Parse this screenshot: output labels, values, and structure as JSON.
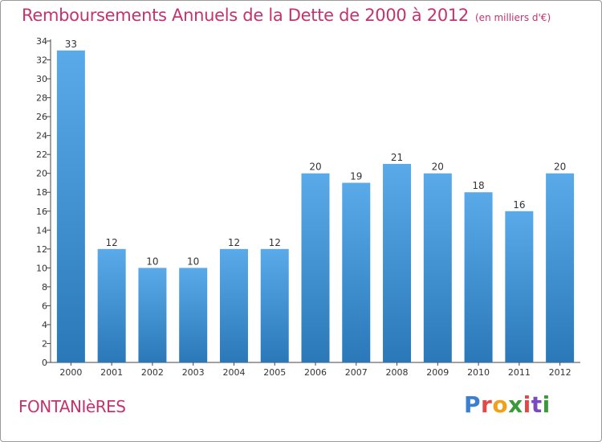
{
  "header": {
    "title": "Remboursements Annuels de la Dette de 2000 à 2012",
    "unit": "(en milliers d'€)"
  },
  "footer": {
    "town": "FONTANIèRES",
    "logo": [
      "P",
      "r",
      "o",
      "x",
      "i",
      "t",
      "i"
    ]
  },
  "colors": {
    "bar_light": "#5aaaea",
    "bar_dark": "#2a78b8",
    "title": "#c5326e"
  },
  "chart_data": {
    "type": "bar",
    "title": "Remboursements Annuels de la Dette de 2000 à 2012",
    "subtitle": "(en milliers d'€)",
    "categories": [
      "2000",
      "2001",
      "2002",
      "2003",
      "2004",
      "2005",
      "2006",
      "2007",
      "2008",
      "2009",
      "2010",
      "2011",
      "2012"
    ],
    "values": [
      33,
      12,
      10,
      10,
      12,
      12,
      20,
      19,
      21,
      20,
      18,
      16,
      20
    ],
    "ylim": [
      0,
      34
    ],
    "yticks": [
      0,
      2,
      4,
      6,
      8,
      10,
      12,
      14,
      16,
      18,
      20,
      22,
      24,
      26,
      28,
      30,
      32,
      34
    ],
    "grid": false,
    "legend": "none"
  }
}
